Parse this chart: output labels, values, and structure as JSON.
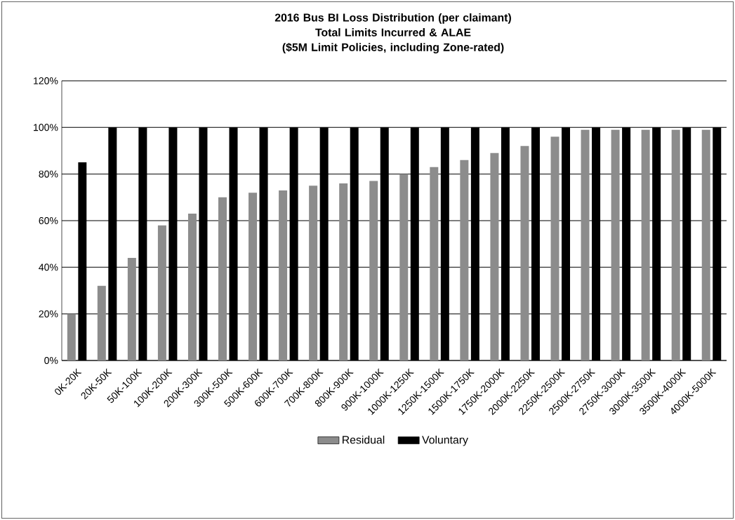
{
  "chart_data": {
    "type": "bar",
    "title": "2016 Bus BI Loss Distribution (per claimant)",
    "subtitle": "Total Limits Incurred & ALAE",
    "annotations": [
      "($5M Limit Policies, including Zone-rated)"
    ],
    "categories": [
      "0K-20K",
      "20K-50K",
      "50K-100K",
      "100K-200K",
      "200K-300K",
      "300K-500K",
      "500K-600K",
      "600K-700K",
      "700K-800K",
      "800K-900K",
      "900K-1000K",
      "1000K-1250K",
      "1250K-1500K",
      "1500K-1750K",
      "1750K-2000K",
      "2000K-2250K",
      "2250K-2500K",
      "2500K-2750K",
      "2750K-3000K",
      "3000K-3500K",
      "3500K-4000K",
      "4000K-5000K"
    ],
    "series": [
      {
        "name": "Residual",
        "color": "#8c8c8c",
        "values": [
          20,
          32,
          44,
          58,
          63,
          70,
          72,
          73,
          75,
          76,
          77,
          80,
          83,
          86,
          89,
          92,
          96,
          99,
          99,
          99,
          99,
          99
        ]
      },
      {
        "name": "Voluntary",
        "color": "#000000",
        "values": [
          85,
          100,
          100,
          100,
          100,
          100,
          100,
          100,
          100,
          100,
          100,
          100,
          100,
          100,
          100,
          100,
          100,
          100,
          100,
          100,
          100,
          100
        ]
      }
    ],
    "ylim": [
      0,
      120
    ],
    "yticks": [
      {
        "value": 0,
        "label": "0%"
      },
      {
        "value": 20,
        "label": "20%"
      },
      {
        "value": 40,
        "label": "40%"
      },
      {
        "value": 60,
        "label": "60%"
      },
      {
        "value": 80,
        "label": "80%"
      },
      {
        "value": 100,
        "label": "100%"
      },
      {
        "value": 120,
        "label": "120%"
      }
    ],
    "grid": "y",
    "legend": "bottom"
  }
}
